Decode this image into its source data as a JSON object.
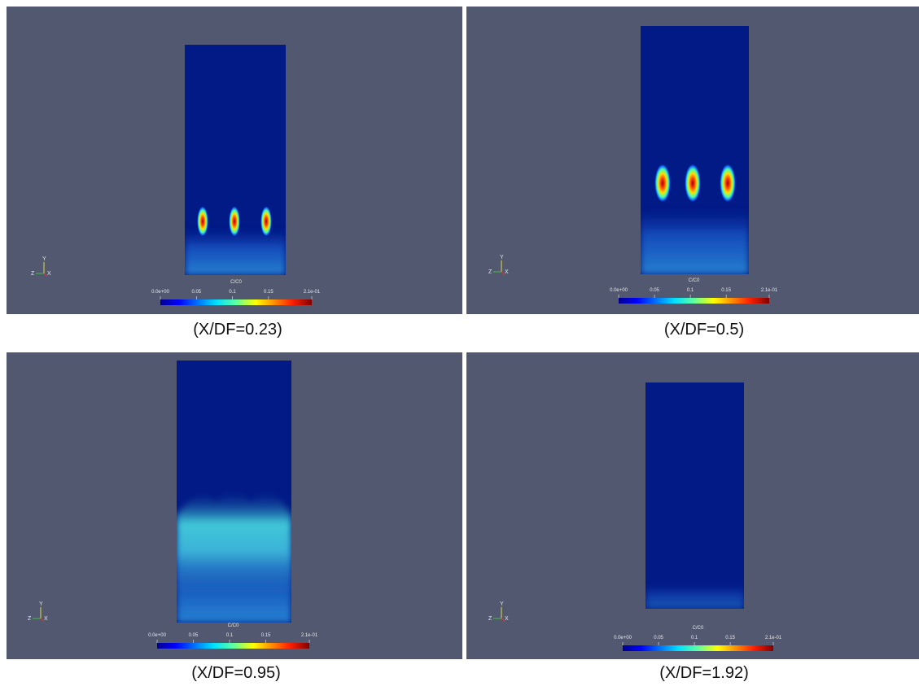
{
  "colorbar": {
    "title": "C/C0",
    "clim": [
      0,
      0.21
    ],
    "ticks": [
      {
        "value": 0,
        "label": "0.0e+00"
      },
      0.05,
      0.1,
      0.15,
      {
        "value": 0.21,
        "label": "2.1e-01"
      }
    ]
  },
  "axes_labels": [
    "Z",
    "X",
    "Y"
  ],
  "panels": [
    {
      "caption": "(X/DF=0.23)"
    },
    {
      "caption": "(X/DF=0.5)"
    },
    {
      "caption": "(X/DF=0.95)"
    },
    {
      "caption": "(X/DF=1.92)"
    }
  ]
}
